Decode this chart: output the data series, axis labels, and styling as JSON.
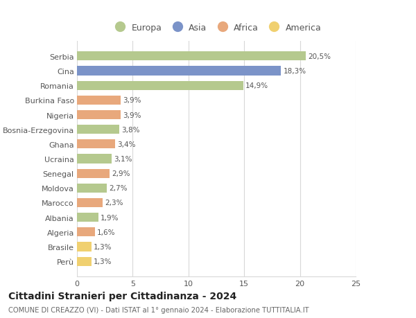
{
  "categories": [
    "Perù",
    "Brasile",
    "Algeria",
    "Albania",
    "Marocco",
    "Moldova",
    "Senegal",
    "Ucraina",
    "Ghana",
    "Bosnia-Erzegovina",
    "Nigeria",
    "Burkina Faso",
    "Romania",
    "Cina",
    "Serbia"
  ],
  "values": [
    1.3,
    1.3,
    1.6,
    1.9,
    2.3,
    2.7,
    2.9,
    3.1,
    3.4,
    3.8,
    3.9,
    3.9,
    14.9,
    18.3,
    20.5
  ],
  "continents": [
    "America",
    "America",
    "Africa",
    "Europa",
    "Africa",
    "Europa",
    "Africa",
    "Europa",
    "Africa",
    "Europa",
    "Africa",
    "Africa",
    "Europa",
    "Asia",
    "Europa"
  ],
  "colors": {
    "Europa": "#b5c98e",
    "Asia": "#7b93c8",
    "Africa": "#e8a87c",
    "America": "#f0d070"
  },
  "legend_order": [
    "Europa",
    "Asia",
    "Africa",
    "America"
  ],
  "xlim": [
    0,
    25
  ],
  "xticks": [
    0,
    5,
    10,
    15,
    20,
    25
  ],
  "title": "Cittadini Stranieri per Cittadinanza - 2024",
  "subtitle": "COMUNE DI CREAZZO (VI) - Dati ISTAT al 1° gennaio 2024 - Elaborazione TUTTITALIA.IT",
  "background_color": "#ffffff",
  "bar_height": 0.62,
  "grid_color": "#d8d8d8"
}
